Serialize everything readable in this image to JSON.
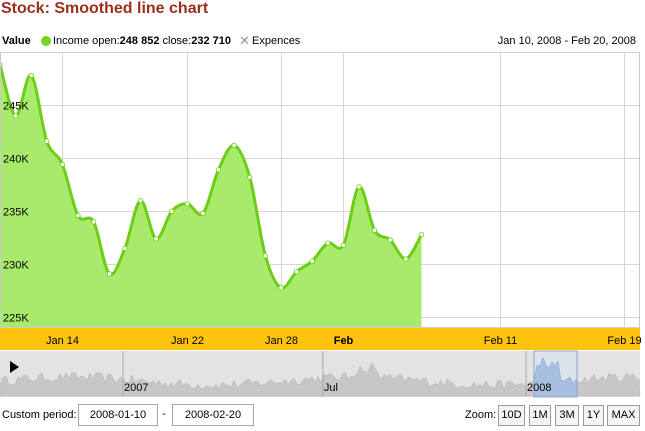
{
  "title": "Stock: Smoothed line chart",
  "legend": {
    "value_label": "Value",
    "income_label": "Income",
    "open_label": "open:",
    "open_value": "248 852",
    "close_label": "close:",
    "close_value": "232 710",
    "expences_label": "Expences",
    "date_range": "Jan 10, 2008 - Feb 20, 2008"
  },
  "custom_period": {
    "label": "Custom period:",
    "from": "2008-01-10",
    "separator": "-",
    "to": "2008-02-20"
  },
  "zoom": {
    "label": "Zoom:",
    "buttons": [
      "10D",
      "1M",
      "3M",
      "1Y",
      "MAX"
    ]
  },
  "navigator": {
    "labels": [
      {
        "text": "2007",
        "date": "2007-01-01"
      },
      {
        "text": "Jul",
        "date": "2007-07-01"
      },
      {
        "text": "2008",
        "date": "2008-01-01"
      }
    ]
  },
  "colors": {
    "line": "#6dcd17",
    "fill": "#a8ea6b",
    "axis_band": "#ffc20e",
    "title": "#9b2f1c"
  },
  "chart_data": {
    "type": "area",
    "x_start": "2008-01-10",
    "x_end": "2008-02-20",
    "ylim": [
      224000,
      250000
    ],
    "y_ticks": [
      {
        "label": "225K",
        "value": 225000
      },
      {
        "label": "230K",
        "value": 230000
      },
      {
        "label": "235K",
        "value": 235000
      },
      {
        "label": "240K",
        "value": 240000
      },
      {
        "label": "245K",
        "value": 245000
      }
    ],
    "x_ticks": [
      {
        "label": "Jan 14",
        "date": "2008-01-14",
        "bold": false
      },
      {
        "label": "Jan 22",
        "date": "2008-01-22",
        "bold": false
      },
      {
        "label": "Jan 28",
        "date": "2008-01-28",
        "bold": false
      },
      {
        "label": "Feb",
        "date": "2008-02-01",
        "bold": true
      },
      {
        "label": "Feb 11",
        "date": "2008-02-11",
        "bold": false
      },
      {
        "label": "Feb 19",
        "date": "2008-02-19",
        "bold": false
      }
    ],
    "series": [
      {
        "name": "Income",
        "points": [
          {
            "x": "2008-01-10",
            "y": 248800
          },
          {
            "x": "2008-01-11",
            "y": 244000
          },
          {
            "x": "2008-01-12",
            "y": 247800
          },
          {
            "x": "2008-01-13",
            "y": 241600
          },
          {
            "x": "2008-01-14",
            "y": 239400
          },
          {
            "x": "2008-01-15",
            "y": 234600
          },
          {
            "x": "2008-01-16",
            "y": 234000
          },
          {
            "x": "2008-01-17",
            "y": 229100
          },
          {
            "x": "2008-01-18",
            "y": 231500
          },
          {
            "x": "2008-01-19",
            "y": 236000
          },
          {
            "x": "2008-01-20",
            "y": 232400
          },
          {
            "x": "2008-01-21",
            "y": 235000
          },
          {
            "x": "2008-01-22",
            "y": 235700
          },
          {
            "x": "2008-01-23",
            "y": 234800
          },
          {
            "x": "2008-01-24",
            "y": 238900
          },
          {
            "x": "2008-01-25",
            "y": 241200
          },
          {
            "x": "2008-01-26",
            "y": 238200
          },
          {
            "x": "2008-01-27",
            "y": 230800
          },
          {
            "x": "2008-01-28",
            "y": 227800
          },
          {
            "x": "2008-01-29",
            "y": 229300
          },
          {
            "x": "2008-01-30",
            "y": 230300
          },
          {
            "x": "2008-01-31",
            "y": 232000
          },
          {
            "x": "2008-02-01",
            "y": 231800
          },
          {
            "x": "2008-02-02",
            "y": 237300
          },
          {
            "x": "2008-02-03",
            "y": 233200
          },
          {
            "x": "2008-02-04",
            "y": 232300
          },
          {
            "x": "2008-02-05",
            "y": 230500
          },
          {
            "x": "2008-02-06",
            "y": 232800
          }
        ]
      }
    ]
  }
}
